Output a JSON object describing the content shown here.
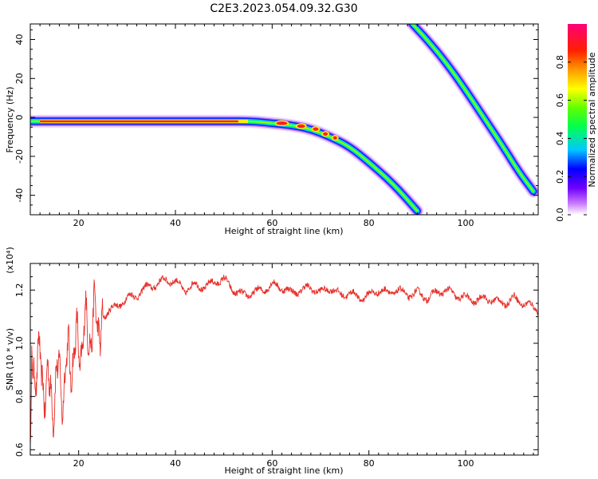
{
  "title": "C2E3.2023.054.09.32.G30",
  "chart_data": [
    {
      "type": "heatmap",
      "xlabel": "Height of straight line (km)",
      "ylabel": "Frequency (Hz)",
      "xlim": [
        10,
        115
      ],
      "ylim": [
        -50,
        48
      ],
      "xticks": [
        20,
        40,
        60,
        80,
        100
      ],
      "yticks": [
        -40,
        -20,
        0,
        20,
        40
      ],
      "colorbar": {
        "label": "Normalized spectral amplitude",
        "range": [
          0,
          1
        ],
        "ticks": [
          "0.0",
          "0.2",
          "0.4",
          "0.6",
          "0.8"
        ]
      },
      "ridges": [
        {
          "x": [
            10,
            20,
            30,
            40,
            50,
            56,
            60,
            64,
            68,
            72,
            76,
            80,
            85,
            90
          ],
          "y": [
            -2,
            -2,
            -2,
            -2,
            -2,
            -2,
            -3,
            -4,
            -6,
            -10,
            -15,
            -23,
            -34,
            -48
          ]
        },
        {
          "x": [
            89,
            92,
            96,
            100,
            104,
            108,
            111,
            114
          ],
          "y": [
            48,
            40,
            28,
            14,
            -1,
            -16,
            -28,
            -38
          ]
        }
      ]
    },
    {
      "type": "line",
      "xlabel": "Height of straight line (km)",
      "ylabel": "SNR (10 * v/v)",
      "y_multiplier": "(x10⁴)",
      "xlim": [
        10,
        115
      ],
      "ylim": [
        0.58,
        1.3
      ],
      "xticks": [
        20,
        40,
        60,
        80,
        100
      ],
      "yticks": [
        "0.6",
        "0.8",
        "1.0",
        "1.2"
      ],
      "color": "#e8302a",
      "trend": {
        "x": [
          10,
          11,
          12,
          13,
          14,
          15,
          16,
          17,
          18,
          19,
          20,
          21,
          22,
          23,
          24,
          25,
          26,
          28,
          30,
          32,
          34,
          36,
          38,
          40,
          42,
          44,
          46,
          48,
          50,
          52,
          54,
          56,
          58,
          60,
          62,
          64,
          66,
          68,
          70,
          72,
          74,
          76,
          78,
          80,
          82,
          84,
          86,
          88,
          90,
          92,
          94,
          96,
          98,
          100,
          102,
          104,
          106,
          108,
          110,
          112,
          115
        ],
        "y": [
          0.95,
          0.93,
          0.9,
          0.86,
          0.8,
          0.82,
          0.87,
          0.84,
          0.95,
          0.96,
          0.98,
          1.03,
          1.05,
          1.07,
          1.09,
          1.1,
          1.12,
          1.14,
          1.17,
          1.18,
          1.21,
          1.22,
          1.24,
          1.23,
          1.2,
          1.22,
          1.21,
          1.23,
          1.24,
          1.2,
          1.18,
          1.19,
          1.2,
          1.22,
          1.21,
          1.19,
          1.2,
          1.21,
          1.19,
          1.21,
          1.18,
          1.19,
          1.17,
          1.18,
          1.2,
          1.19,
          1.2,
          1.18,
          1.19,
          1.17,
          1.19,
          1.2,
          1.18,
          1.17,
          1.16,
          1.17,
          1.16,
          1.15,
          1.17,
          1.15,
          1.13
        ]
      }
    }
  ]
}
